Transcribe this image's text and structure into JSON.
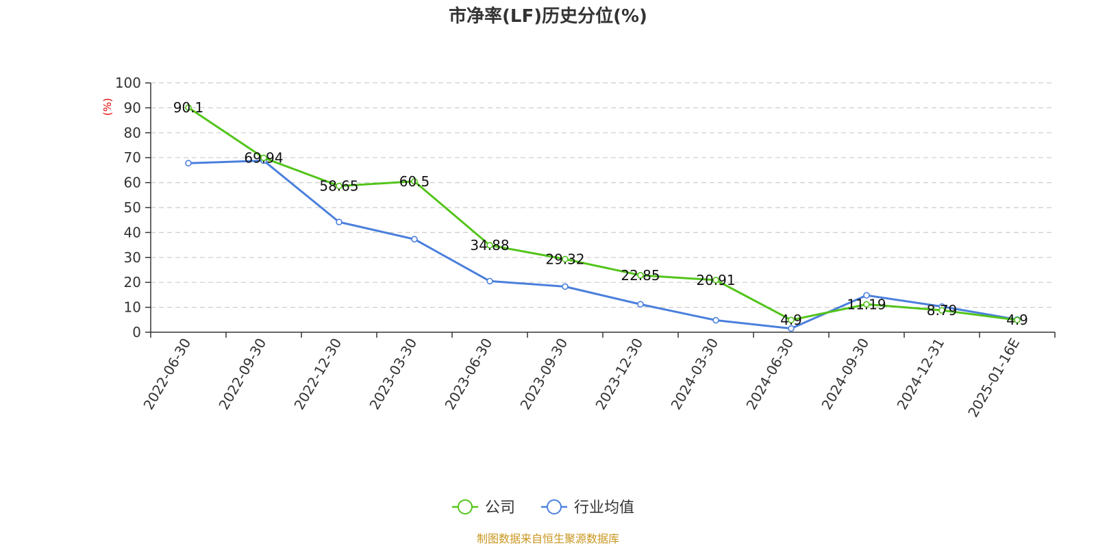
{
  "chart_data": {
    "type": "line",
    "title": "市净率(LF)历史分位(%)",
    "ylabel": "(%)",
    "xlabel": "",
    "ylim": [
      0,
      100
    ],
    "yticks": [
      0,
      10,
      20,
      30,
      40,
      50,
      60,
      70,
      80,
      90,
      100
    ],
    "grid": true,
    "legend_position": "bottom",
    "categories": [
      "2022-06-30",
      "2022-09-30",
      "2022-12-30",
      "2023-03-30",
      "2023-06-30",
      "2023-09-30",
      "2023-12-30",
      "2024-03-30",
      "2024-06-30",
      "2024-09-30",
      "2024-12-31",
      "2025-01-16E"
    ],
    "series": [
      {
        "name": "公司",
        "color": "#52c41a",
        "values": [
          90.1,
          69.94,
          58.65,
          60.5,
          34.88,
          29.32,
          22.85,
          20.91,
          4.9,
          11.19,
          8.79,
          4.9
        ],
        "labels": [
          "90.1",
          "69.94",
          "58.65",
          "60.5",
          "34.88",
          "29.32",
          "22.85",
          "20.91",
          "4.9",
          "11.19",
          "8.79",
          "4.9"
        ]
      },
      {
        "name": "行业均值",
        "color": "#4a7fdc",
        "values": [
          67.8,
          68.8,
          44.2,
          37.3,
          20.5,
          18.3,
          11.2,
          4.8,
          1.5,
          14.8,
          10.3,
          5.1
        ]
      }
    ]
  },
  "footer": {
    "source": "制图数据来自恒生聚源数据库",
    "source_color": "#c8961e"
  },
  "colors": {
    "unit_label": "#e00000"
  }
}
